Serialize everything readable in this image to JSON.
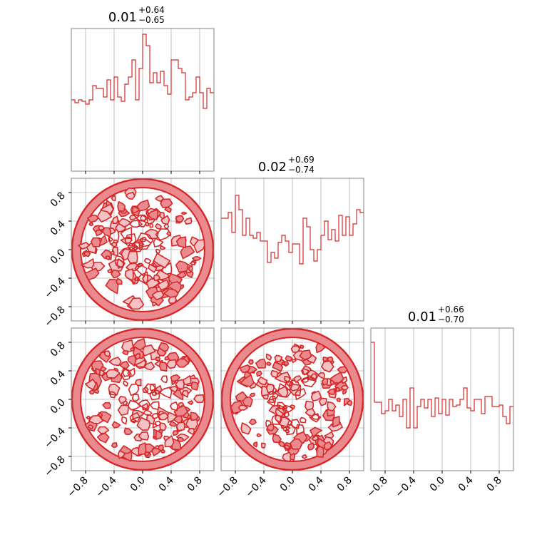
{
  "chart_data": {
    "type": "corner",
    "parameters": [
      "",
      "",
      ""
    ],
    "axis_range": [
      -1,
      1
    ],
    "tick_values": [
      -0.8,
      -0.4,
      0.0,
      0.4,
      0.8
    ],
    "tick_labels": [
      "−0.8",
      "−0.4",
      "0.0",
      "0.4",
      "0.8"
    ],
    "grid": true,
    "colors": {
      "line": "#d62728",
      "fill_inner": "#f4c1c4",
      "fill_mid": "#ea8a8f",
      "grid": "#b0b0b0",
      "frame": "#808080"
    },
    "titles": [
      {
        "median": "0.01",
        "plus": "+0.64",
        "minus": "−0.65"
      },
      {
        "median": "0.02",
        "plus": "+0.69",
        "minus": "−0.74"
      },
      {
        "median": "0.01",
        "plus": "+0.66",
        "minus": "−0.70"
      }
    ],
    "histograms": [
      {
        "bins": 40,
        "values": [
          0.5,
          0.48,
          0.5,
          0.49,
          0.47,
          0.5,
          0.6,
          0.58,
          0.58,
          0.52,
          0.64,
          0.5,
          0.66,
          0.52,
          0.49,
          0.61,
          0.66,
          0.78,
          0.5,
          0.72,
          0.96,
          0.88,
          0.62,
          0.69,
          0.62,
          0.7,
          0.6,
          0.54,
          0.78,
          0.78,
          0.72,
          0.69,
          0.5,
          0.52,
          0.55,
          0.66,
          0.55,
          0.44,
          0.58,
          0.55
        ],
        "ymax": 1.0
      },
      {
        "bins": 40,
        "values": [
          0.72,
          0.72,
          0.76,
          0.62,
          0.88,
          0.78,
          0.6,
          0.72,
          0.6,
          0.58,
          0.62,
          0.56,
          0.56,
          0.41,
          0.48,
          0.44,
          0.55,
          0.6,
          0.56,
          0.48,
          0.54,
          0.54,
          0.4,
          0.72,
          0.66,
          0.5,
          0.42,
          0.5,
          0.6,
          0.7,
          0.57,
          0.64,
          0.56,
          0.74,
          0.6,
          0.73,
          0.6,
          0.68,
          0.78,
          0.76
        ],
        "ymax": 1.0
      },
      {
        "bins": 40,
        "values": [
          0.9,
          0.48,
          0.48,
          0.4,
          0.42,
          0.5,
          0.42,
          0.46,
          0.38,
          0.5,
          0.3,
          0.58,
          0.3,
          0.45,
          0.5,
          0.44,
          0.5,
          0.38,
          0.51,
          0.4,
          0.5,
          0.39,
          0.5,
          0.45,
          0.46,
          0.5,
          0.58,
          0.44,
          0.42,
          0.5,
          0.5,
          0.4,
          0.52,
          0.52,
          0.45,
          0.45,
          0.46,
          0.38,
          0.33,
          0.45
        ],
        "ymax": 1.0
      }
    ],
    "contour_panels": [
      {
        "x_param": 0,
        "y_param": 1,
        "support": "disk",
        "radius": 1.0
      },
      {
        "x_param": 0,
        "y_param": 2,
        "support": "disk",
        "radius": 1.0
      },
      {
        "x_param": 1,
        "y_param": 2,
        "support": "disk",
        "radius": 1.0
      }
    ]
  }
}
